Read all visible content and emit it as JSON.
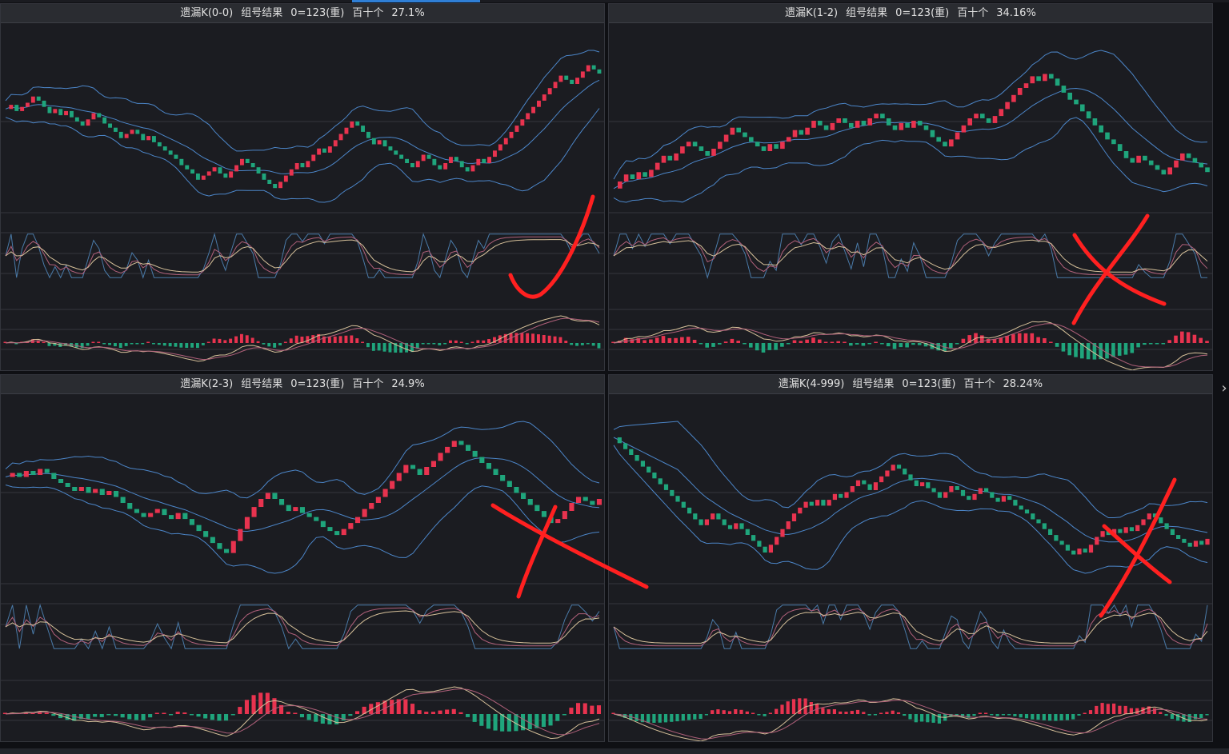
{
  "colors": {
    "up": "#e8334f",
    "down": "#1fa57c",
    "band": "#4c86c9",
    "kdj_k": "#4a7aa8",
    "kdj_d": "#b0607a",
    "kdj_j": "#d7c19a",
    "grid": "#34363d",
    "annotation": "#ff2020"
  },
  "icons": {
    "scroll_right": "›"
  },
  "panels": [
    {
      "title": "遗漏K(0-0)",
      "label": "组号结果",
      "formula": "0=123(重)",
      "digits": "百十个",
      "percent": "27.1%",
      "annotation": "check-mark-icon",
      "chart_data": {
        "type": "candlestick",
        "closes": [
          0.72,
          0.74,
          0.71,
          0.73,
          0.75,
          0.78,
          0.76,
          0.73,
          0.7,
          0.72,
          0.69,
          0.71,
          0.68,
          0.66,
          0.64,
          0.67,
          0.7,
          0.68,
          0.65,
          0.63,
          0.61,
          0.58,
          0.6,
          0.62,
          0.6,
          0.57,
          0.59,
          0.56,
          0.54,
          0.52,
          0.5,
          0.48,
          0.45,
          0.43,
          0.41,
          0.38,
          0.4,
          0.42,
          0.44,
          0.41,
          0.39,
          0.42,
          0.45,
          0.48,
          0.46,
          0.44,
          0.41,
          0.38,
          0.36,
          0.34,
          0.37,
          0.4,
          0.43,
          0.46,
          0.44,
          0.47,
          0.5,
          0.53,
          0.51,
          0.54,
          0.57,
          0.6,
          0.63,
          0.66,
          0.64,
          0.61,
          0.58,
          0.55,
          0.57,
          0.54,
          0.52,
          0.5,
          0.48,
          0.46,
          0.44,
          0.47,
          0.5,
          0.48,
          0.45,
          0.43,
          0.46,
          0.49,
          0.47,
          0.44,
          0.42,
          0.45,
          0.48,
          0.46,
          0.49,
          0.52,
          0.55,
          0.58,
          0.61,
          0.64,
          0.67,
          0.7,
          0.73,
          0.76,
          0.79,
          0.82,
          0.85,
          0.88,
          0.86,
          0.84,
          0.87,
          0.9,
          0.93,
          0.91,
          0.89
        ]
      }
    },
    {
      "title": "遗漏K(1-2)",
      "label": "组号结果",
      "formula": "0=123(重)",
      "digits": "百十个",
      "percent": "34.16%",
      "annotation": "x-mark-icon",
      "chart_data": {
        "type": "candlestick",
        "closes": [
          0.3,
          0.33,
          0.36,
          0.34,
          0.37,
          0.35,
          0.38,
          0.41,
          0.44,
          0.42,
          0.45,
          0.48,
          0.5,
          0.48,
          0.46,
          0.44,
          0.47,
          0.5,
          0.53,
          0.56,
          0.54,
          0.52,
          0.5,
          0.48,
          0.46,
          0.49,
          0.47,
          0.5,
          0.52,
          0.55,
          0.53,
          0.56,
          0.59,
          0.57,
          0.55,
          0.58,
          0.6,
          0.58,
          0.56,
          0.59,
          0.57,
          0.6,
          0.62,
          0.6,
          0.57,
          0.55,
          0.58,
          0.56,
          0.59,
          0.57,
          0.55,
          0.52,
          0.5,
          0.48,
          0.51,
          0.54,
          0.57,
          0.6,
          0.62,
          0.6,
          0.58,
          0.61,
          0.64,
          0.67,
          0.7,
          0.73,
          0.75,
          0.78,
          0.76,
          0.79,
          0.77,
          0.74,
          0.71,
          0.68,
          0.66,
          0.63,
          0.6,
          0.57,
          0.54,
          0.51,
          0.49,
          0.46,
          0.43,
          0.41,
          0.44,
          0.42,
          0.4,
          0.38,
          0.36,
          0.39,
          0.42,
          0.45,
          0.43,
          0.41,
          0.39,
          0.37
        ]
      }
    },
    {
      "title": "遗漏K(2-3)",
      "label": "组号结果",
      "formula": "0=123(重)",
      "digits": "百十个",
      "percent": "24.9%",
      "annotation": "x-mark-icon",
      "chart_data": {
        "type": "candlestick",
        "closes": [
          0.58,
          0.6,
          0.58,
          0.61,
          0.59,
          0.62,
          0.6,
          0.57,
          0.55,
          0.53,
          0.51,
          0.53,
          0.5,
          0.52,
          0.49,
          0.51,
          0.48,
          0.45,
          0.42,
          0.4,
          0.38,
          0.4,
          0.42,
          0.39,
          0.37,
          0.4,
          0.37,
          0.34,
          0.31,
          0.28,
          0.25,
          0.22,
          0.2,
          0.26,
          0.32,
          0.38,
          0.43,
          0.47,
          0.5,
          0.47,
          0.44,
          0.41,
          0.43,
          0.4,
          0.38,
          0.36,
          0.33,
          0.31,
          0.29,
          0.32,
          0.35,
          0.38,
          0.42,
          0.45,
          0.48,
          0.52,
          0.56,
          0.6,
          0.64,
          0.62,
          0.59,
          0.63,
          0.66,
          0.7,
          0.73,
          0.76,
          0.74,
          0.71,
          0.68,
          0.65,
          0.62,
          0.59,
          0.56,
          0.53,
          0.5,
          0.47,
          0.44,
          0.41,
          0.38,
          0.35,
          0.37,
          0.41,
          0.45,
          0.48,
          0.46,
          0.44,
          0.47
        ]
      }
    },
    {
      "title": "遗漏K(4-999)",
      "label": "组号结果",
      "formula": "0=123(重)",
      "digits": "百十个",
      "percent": "28.24%",
      "annotation": "x-mark-icon",
      "chart_data": {
        "type": "candlestick",
        "closes": [
          0.95,
          0.92,
          0.89,
          0.86,
          0.83,
          0.8,
          0.77,
          0.74,
          0.71,
          0.68,
          0.65,
          0.62,
          0.59,
          0.56,
          0.53,
          0.5,
          0.53,
          0.56,
          0.53,
          0.5,
          0.48,
          0.51,
          0.48,
          0.45,
          0.42,
          0.39,
          0.36,
          0.4,
          0.44,
          0.48,
          0.52,
          0.56,
          0.59,
          0.62,
          0.6,
          0.63,
          0.6,
          0.63,
          0.66,
          0.64,
          0.67,
          0.7,
          0.73,
          0.71,
          0.68,
          0.72,
          0.75,
          0.78,
          0.81,
          0.79,
          0.76,
          0.73,
          0.7,
          0.72,
          0.69,
          0.67,
          0.64,
          0.67,
          0.7,
          0.68,
          0.65,
          0.63,
          0.66,
          0.69,
          0.67,
          0.64,
          0.62,
          0.65,
          0.63,
          0.6,
          0.58,
          0.56,
          0.53,
          0.51,
          0.48,
          0.45,
          0.42,
          0.4,
          0.37,
          0.35,
          0.38,
          0.36,
          0.4,
          0.44,
          0.47,
          0.45,
          0.48,
          0.46,
          0.49,
          0.47,
          0.5,
          0.53,
          0.56,
          0.54,
          0.51,
          0.48,
          0.45,
          0.43,
          0.41,
          0.39,
          0.42,
          0.4,
          0.43
        ]
      }
    }
  ]
}
